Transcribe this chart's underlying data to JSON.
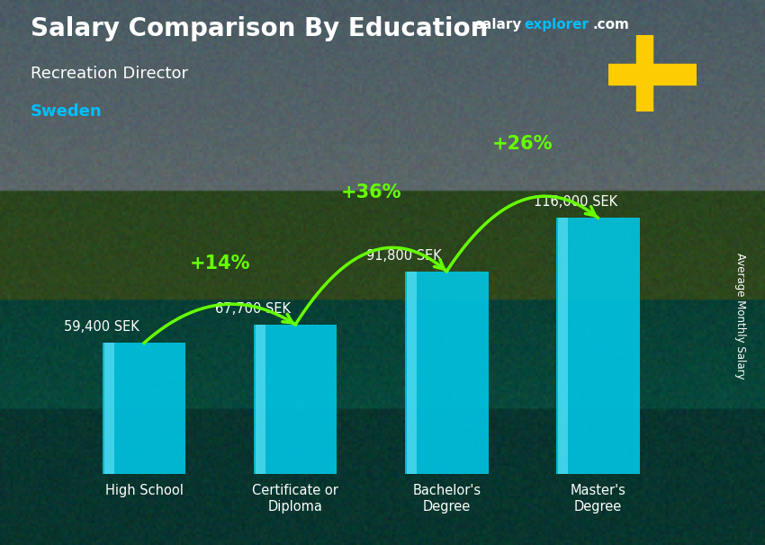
{
  "title_main": "Salary Comparison By Education",
  "subtitle_job": "Recreation Director",
  "subtitle_country": "Sweden",
  "watermark_salary": "salary",
  "watermark_explorer": "explorer",
  "watermark_com": ".com",
  "ylabel": "Average Monthly Salary",
  "categories": [
    "High School",
    "Certificate or\nDiploma",
    "Bachelor's\nDegree",
    "Master's\nDegree"
  ],
  "values": [
    59400,
    67700,
    91800,
    116000
  ],
  "value_labels": [
    "59,400 SEK",
    "67,700 SEK",
    "91,800 SEK",
    "116,000 SEK"
  ],
  "pct_labels": [
    "+14%",
    "+36%",
    "+26%"
  ],
  "bar_color": "#00C8E8",
  "pct_color": "#66FF00",
  "value_label_color": "#FFFFFF",
  "title_color": "#FFFFFF",
  "subtitle_job_color": "#FFFFFF",
  "subtitle_country_color": "#00BFFF",
  "watermark_color_salary": "#FFFFFF",
  "watermark_color_explorer": "#00BFFF",
  "watermark_color_com": "#FFFFFF",
  "bg_color": "#3a6040",
  "ylim": [
    0,
    148000
  ],
  "bar_width": 0.55,
  "flag_blue": "#006AA7",
  "flag_yellow": "#FECC02"
}
